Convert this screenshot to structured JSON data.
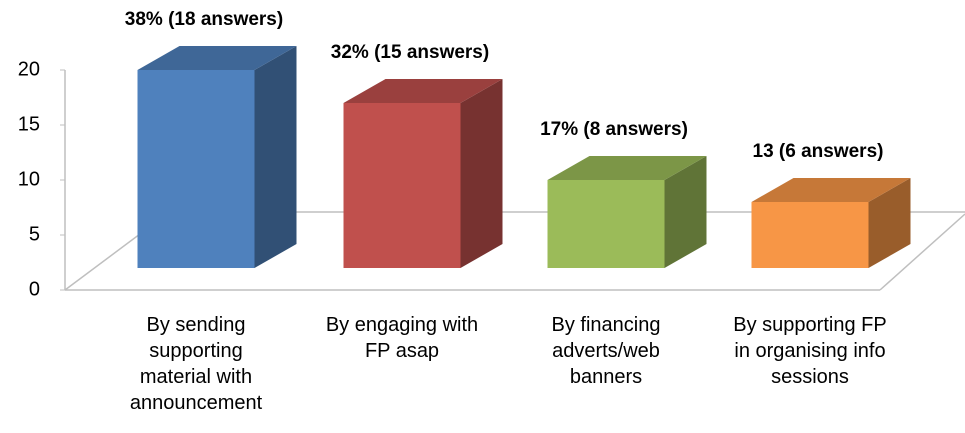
{
  "chart_data": {
    "type": "bar3d",
    "categories": [
      "By sending supporting material with announcement",
      "By engaging with FP asap",
      "By financing adverts/web banners",
      "By supporting FP in organising info sessions"
    ],
    "values": [
      18,
      15,
      8,
      6
    ],
    "value_labels": [
      "38% (18 answers)",
      "32% (15 answers)",
      "17% (8 answers)",
      "13 (6 answers)"
    ],
    "colors": [
      "#4f81bd",
      "#c0504d",
      "#9bbb59",
      "#f79646"
    ],
    "ylim": [
      0,
      20
    ],
    "yticks": [
      0,
      5,
      10,
      15,
      20
    ]
  }
}
